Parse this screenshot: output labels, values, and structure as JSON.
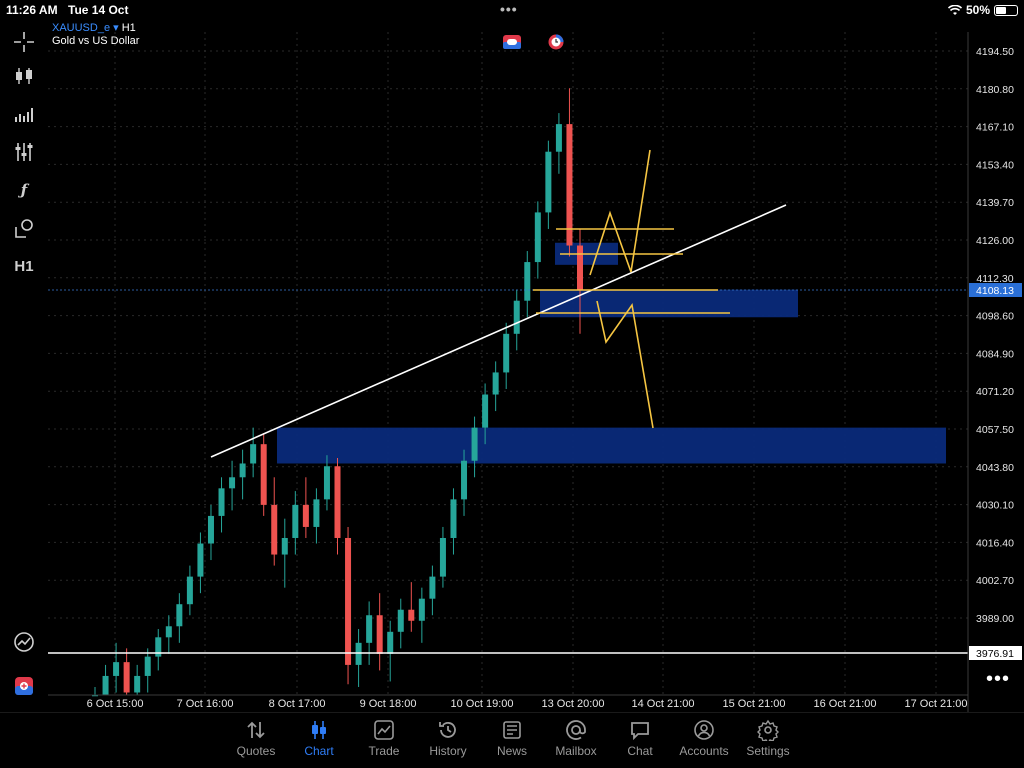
{
  "status": {
    "time": "11:26 AM",
    "date": "Tue 14 Oct",
    "battery": "50%",
    "battery_level": 0.5
  },
  "instrument": {
    "symbol": "XAUUSD_e",
    "timeframe": "H1",
    "description": "Gold vs US Dollar"
  },
  "toolbar": {
    "timeframe_label": "H1"
  },
  "price_axis": {
    "ticks": [
      "4194.50",
      "4180.80",
      "4167.10",
      "4153.40",
      "4139.70",
      "4126.00",
      "4112.30",
      "4098.60",
      "4084.90",
      "4071.20",
      "4057.50",
      "4043.80",
      "4030.10",
      "4016.40",
      "4002.70",
      "3989.00"
    ],
    "current_price": "4108.13",
    "hline_label": "3976.91"
  },
  "time_axis": {
    "ticks": [
      "6 Oct 15:00",
      "7 Oct 16:00",
      "8 Oct 17:00",
      "9 Oct 18:00",
      "10 Oct 19:00",
      "13 Oct 20:00",
      "14 Oct 21:00",
      "15 Oct 21:00",
      "16 Oct 21:00",
      "17 Oct 21:00"
    ]
  },
  "colors": {
    "bull": "#26a69a",
    "bear": "#ef5350",
    "zone": "#0a2a7a",
    "drawing_yellow": "#f5c542",
    "trendline": "#ffffff",
    "accent": "#2f7df6"
  },
  "chart_data": {
    "type": "candlestick",
    "symbol": "XAUUSD_e",
    "timeframe": "H1",
    "y_range": [
      3965,
      4200
    ],
    "current_price": 4108.13,
    "horizontal_line": 3976.91,
    "series": [
      {
        "time": "6 Oct 15:00",
        "o": 3958,
        "h": 3964,
        "l": 3950,
        "c": 3961
      },
      {
        "time": "6 Oct 17:00",
        "o": 3961,
        "h": 3972,
        "l": 3955,
        "c": 3968
      },
      {
        "time": "6 Oct 19:00",
        "o": 3968,
        "h": 3980,
        "l": 3962,
        "c": 3973
      },
      {
        "time": "6 Oct 21:00",
        "o": 3973,
        "h": 3978,
        "l": 3958,
        "c": 3962
      },
      {
        "time": "6 Oct 23:00",
        "o": 3962,
        "h": 3972,
        "l": 3955,
        "c": 3968
      },
      {
        "time": "7 Oct 02:00",
        "o": 3968,
        "h": 3978,
        "l": 3962,
        "c": 3975
      },
      {
        "time": "7 Oct 05:00",
        "o": 3975,
        "h": 3985,
        "l": 3970,
        "c": 3982
      },
      {
        "time": "7 Oct 08:00",
        "o": 3982,
        "h": 3990,
        "l": 3976,
        "c": 3986
      },
      {
        "time": "7 Oct 11:00",
        "o": 3986,
        "h": 3998,
        "l": 3980,
        "c": 3994
      },
      {
        "time": "7 Oct 14:00",
        "o": 3994,
        "h": 4008,
        "l": 3990,
        "c": 4004
      },
      {
        "time": "7 Oct 16:00",
        "o": 4004,
        "h": 4020,
        "l": 3998,
        "c": 4016
      },
      {
        "time": "7 Oct 18:00",
        "o": 4016,
        "h": 4030,
        "l": 4010,
        "c": 4026
      },
      {
        "time": "7 Oct 20:00",
        "o": 4026,
        "h": 4040,
        "l": 4020,
        "c": 4036
      },
      {
        "time": "7 Oct 22:00",
        "o": 4036,
        "h": 4046,
        "l": 4028,
        "c": 4040
      },
      {
        "time": "8 Oct 01:00",
        "o": 4040,
        "h": 4050,
        "l": 4032,
        "c": 4045
      },
      {
        "time": "8 Oct 04:00",
        "o": 4045,
        "h": 4058,
        "l": 4040,
        "c": 4052
      },
      {
        "time": "8 Oct 07:00",
        "o": 4052,
        "h": 4056,
        "l": 4026,
        "c": 4030
      },
      {
        "time": "8 Oct 10:00",
        "o": 4030,
        "h": 4040,
        "l": 4008,
        "c": 4012
      },
      {
        "time": "8 Oct 13:00",
        "o": 4012,
        "h": 4025,
        "l": 4000,
        "c": 4018
      },
      {
        "time": "8 Oct 16:00",
        "o": 4018,
        "h": 4035,
        "l": 4012,
        "c": 4030
      },
      {
        "time": "8 Oct 19:00",
        "o": 4030,
        "h": 4040,
        "l": 4018,
        "c": 4022
      },
      {
        "time": "8 Oct 22:00",
        "o": 4022,
        "h": 4036,
        "l": 4016,
        "c": 4032
      },
      {
        "time": "9 Oct 01:00",
        "o": 4032,
        "h": 4048,
        "l": 4028,
        "c": 4044
      },
      {
        "time": "9 Oct 04:00",
        "o": 4044,
        "h": 4047,
        "l": 4012,
        "c": 4018
      },
      {
        "time": "9 Oct 07:00",
        "o": 4018,
        "h": 4022,
        "l": 3965,
        "c": 3972
      },
      {
        "time": "9 Oct 10:00",
        "o": 3972,
        "h": 3985,
        "l": 3964,
        "c": 3980
      },
      {
        "time": "9 Oct 13:00",
        "o": 3980,
        "h": 3995,
        "l": 3972,
        "c": 3990
      },
      {
        "time": "9 Oct 16:00",
        "o": 3990,
        "h": 3998,
        "l": 3970,
        "c": 3976
      },
      {
        "time": "9 Oct 19:00",
        "o": 3976,
        "h": 3988,
        "l": 3966,
        "c": 3984
      },
      {
        "time": "9 Oct 22:00",
        "o": 3984,
        "h": 3996,
        "l": 3978,
        "c": 3992
      },
      {
        "time": "10 Oct 02:00",
        "o": 3992,
        "h": 4002,
        "l": 3984,
        "c": 3988
      },
      {
        "time": "10 Oct 06:00",
        "o": 3988,
        "h": 4000,
        "l": 3980,
        "c": 3996
      },
      {
        "time": "10 Oct 10:00",
        "o": 3996,
        "h": 4008,
        "l": 3990,
        "c": 4004
      },
      {
        "time": "10 Oct 13:00",
        "o": 4004,
        "h": 4022,
        "l": 4000,
        "c": 4018
      },
      {
        "time": "10 Oct 16:00",
        "o": 4018,
        "h": 4036,
        "l": 4012,
        "c": 4032
      },
      {
        "time": "10 Oct 19:00",
        "o": 4032,
        "h": 4050,
        "l": 4026,
        "c": 4046
      },
      {
        "time": "10 Oct 22:00",
        "o": 4046,
        "h": 4062,
        "l": 4040,
        "c": 4058
      },
      {
        "time": "13 Oct 02:00",
        "o": 4058,
        "h": 4074,
        "l": 4052,
        "c": 4070
      },
      {
        "time": "13 Oct 06:00",
        "o": 4070,
        "h": 4082,
        "l": 4064,
        "c": 4078
      },
      {
        "time": "13 Oct 10:00",
        "o": 4078,
        "h": 4096,
        "l": 4072,
        "c": 4092
      },
      {
        "time": "13 Oct 13:00",
        "o": 4092,
        "h": 4108,
        "l": 4086,
        "c": 4104
      },
      {
        "time": "13 Oct 15:00",
        "o": 4104,
        "h": 4122,
        "l": 4098,
        "c": 4118
      },
      {
        "time": "13 Oct 16:00",
        "o": 4118,
        "h": 4140,
        "l": 4112,
        "c": 4136
      },
      {
        "time": "13 Oct 17:00",
        "o": 4136,
        "h": 4162,
        "l": 4130,
        "c": 4158
      },
      {
        "time": "13 Oct 18:00",
        "o": 4158,
        "h": 4172,
        "l": 4150,
        "c": 4168
      },
      {
        "time": "13 Oct 19:00",
        "o": 4168,
        "h": 4181,
        "l": 4120,
        "c": 4124
      },
      {
        "time": "13 Oct 20:00",
        "o": 4124,
        "h": 4130,
        "l": 4092,
        "c": 4108
      }
    ],
    "zones": [
      {
        "top": 4125,
        "bottom": 4117,
        "from": "13 Oct 17:00",
        "to": "13 Oct 20:00"
      },
      {
        "top": 4108,
        "bottom": 4098,
        "from": "13 Oct 13:00",
        "to": "15 Oct 21:00"
      },
      {
        "top": 4058,
        "bottom": 4045,
        "from": "8 Oct 13:00",
        "to": "17 Oct 21:00"
      }
    ]
  }
}
